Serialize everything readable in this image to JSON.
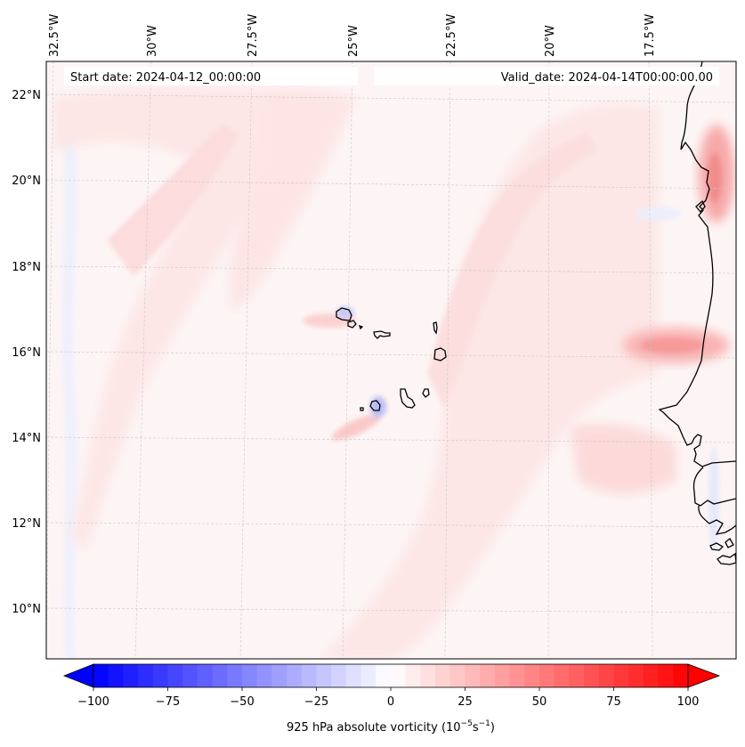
{
  "chart_data": {
    "type": "heatmap",
    "title": "",
    "projection": "map (lat/lon, slightly conic)",
    "variable": "925 hPa absolute vorticity",
    "colorbar": {
      "label_main": "925 hPa absolute vorticity (10",
      "label_exp1": "−5",
      "label_mid": "s",
      "label_exp2": "−1",
      "label_close": ")",
      "colormap": "bwr",
      "vmin": -100,
      "vmax": 100,
      "levels_step": 5,
      "extend": "both",
      "ticks": [
        -100,
        -75,
        -50,
        -25,
        0,
        25,
        50,
        75,
        100
      ],
      "tick_labels": [
        "−100",
        "−75",
        "−50",
        "−25",
        "0",
        "25",
        "50",
        "75",
        "100"
      ],
      "orientation": "horizontal",
      "placement": "bottom"
    },
    "lon_ticks": [
      {
        "value": -32.5,
        "label": "32.5°W"
      },
      {
        "value": -30.0,
        "label": "30°W"
      },
      {
        "value": -27.5,
        "label": "27.5°W"
      },
      {
        "value": -25.0,
        "label": "25°W"
      },
      {
        "value": -22.5,
        "label": "22.5°W"
      },
      {
        "value": -20.0,
        "label": "20°W"
      },
      {
        "value": -17.5,
        "label": "17.5°W"
      }
    ],
    "lat_ticks": [
      {
        "value": 22,
        "label": "22°N"
      },
      {
        "value": 20,
        "label": "20°N"
      },
      {
        "value": 18,
        "label": "18°N"
      },
      {
        "value": 16,
        "label": "16°N"
      },
      {
        "value": 14,
        "label": "14°N"
      },
      {
        "value": 12,
        "label": "12°N"
      },
      {
        "value": 10,
        "label": "10°N"
      }
    ],
    "lon_range": [
      -33.0,
      -15.5
    ],
    "lat_range": [
      8.9,
      22.8
    ],
    "grid": true,
    "annotations": {
      "start_date": "Start date: 2024-04-12_00:00:00",
      "valid_date": "Valid_date: 2024-04-14T00:00:00.00"
    },
    "features": [
      {
        "name": "background weak positive vorticity",
        "value": 3
      },
      {
        "name": "diagonal positive band west (SW-NE)",
        "value": 10
      },
      {
        "name": "broad positive band central-east",
        "value": 12
      },
      {
        "name": "max near coast 16N (Senegal/Mauritania)",
        "value": 40
      },
      {
        "name": "max near coast 20N (Cap Blanc)",
        "value": 45
      },
      {
        "name": "negative spot Fogo island",
        "value": -30
      },
      {
        "name": "negative spot Santo Antao",
        "value": -25
      },
      {
        "name": "weak negative strip west edge",
        "value": -8
      },
      {
        "name": "weak negative strip coast 12-13N",
        "value": -10
      },
      {
        "name": "weak negative patch 19N offshore",
        "value": -6
      }
    ]
  }
}
